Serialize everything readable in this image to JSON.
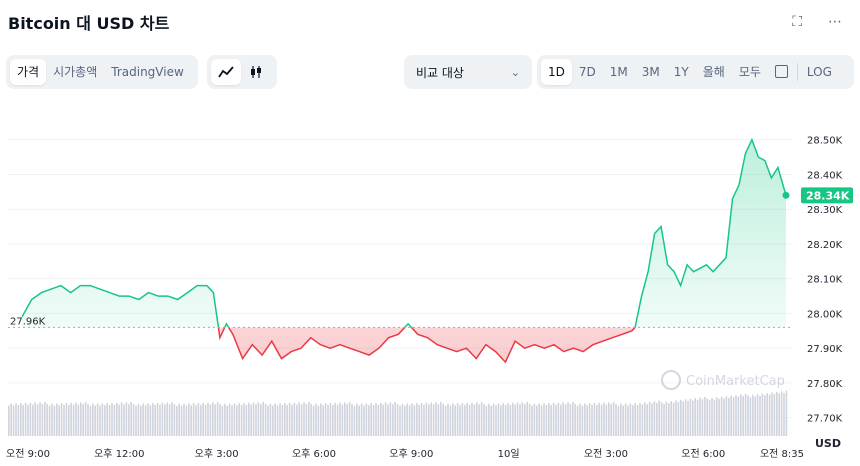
{
  "title": "Bitcoin 대 USD 차트",
  "icons": {
    "fullscreen": "expand-icon",
    "more": "more-icon"
  },
  "toolbar": {
    "type_tabs": [
      "가격",
      "시가총액",
      "TradingView"
    ],
    "active_type": 0,
    "chart_style_icons": [
      "line-chart-icon",
      "candlestick-icon"
    ],
    "compare_label": "비교 대상",
    "ranges": [
      "1D",
      "7D",
      "1M",
      "3M",
      "1Y",
      "올해",
      "모두"
    ],
    "active_range": 0,
    "log_label": "LOG"
  },
  "watermark": "CoinMarketCap",
  "currency_label": "USD",
  "colors": {
    "up": "#16c784",
    "down": "#ea3943",
    "badge": "#16c784",
    "volume": "#cfd3dc"
  },
  "chart_data": {
    "type": "line",
    "title": "Bitcoin 대 USD 차트",
    "ylabel": "USD",
    "ylim": [
      27.65,
      28.6
    ],
    "y_ticks": [
      27.7,
      27.8,
      27.9,
      28.0,
      28.1,
      28.2,
      28.3,
      28.4,
      28.5
    ],
    "y_tick_labels": [
      "27.70K",
      "27.80K",
      "27.90K",
      "28.00K",
      "28.10K",
      "28.20K",
      "28.30K",
      "28.40K",
      "28.50K"
    ],
    "x_ticks": [
      0,
      3,
      6,
      9,
      12,
      15,
      18,
      21,
      23.55
    ],
    "x_tick_labels": [
      "오전 9:00",
      "오후 12:00",
      "오후 3:00",
      "오후 6:00",
      "오후 9:00",
      "10일",
      "오전 3:00",
      "오전 6:00",
      "오전 8:35"
    ],
    "baseline": 27.96,
    "baseline_label": "27.96K",
    "current_value": 28.34,
    "current_label": "28.34K",
    "series": [
      {
        "x": [
          0,
          0.3,
          0.6,
          0.9,
          1.2,
          1.5,
          1.8,
          2.1,
          2.4,
          2.7,
          3.0,
          3.3,
          3.6,
          3.9,
          4.2,
          4.5,
          4.8,
          5.1,
          5.4,
          5.7,
          5.9,
          6.1,
          6.3,
          6.5,
          6.8,
          7.1,
          7.4,
          7.7,
          8.0,
          8.3,
          8.6,
          8.9,
          9.2,
          9.5,
          9.8,
          10.1,
          10.4,
          10.7,
          11.0,
          11.3,
          11.6,
          11.9,
          12.2,
          12.5,
          12.8,
          13.1,
          13.4,
          13.7,
          14.0,
          14.3,
          14.6,
          14.9,
          15.2,
          15.5,
          15.8,
          16.1,
          16.4,
          16.7,
          17.0,
          17.3,
          17.6,
          17.9,
          18.2,
          18.5,
          18.8,
          18.9,
          19.1,
          19.3,
          19.5,
          19.7,
          19.9,
          20.1,
          20.3,
          20.5,
          20.7,
          20.9,
          21.1,
          21.3,
          21.5,
          21.7,
          21.9,
          22.1,
          22.3,
          22.5,
          22.7,
          22.9,
          23.1,
          23.3,
          23.55
        ],
        "y": [
          27.99,
          28.04,
          28.06,
          28.07,
          28.08,
          28.06,
          28.08,
          28.08,
          28.07,
          28.06,
          28.05,
          28.05,
          28.04,
          28.06,
          28.05,
          28.05,
          28.04,
          28.06,
          28.08,
          28.08,
          28.06,
          27.93,
          27.97,
          27.94,
          27.87,
          27.91,
          27.88,
          27.92,
          27.87,
          27.89,
          27.9,
          27.93,
          27.91,
          27.9,
          27.91,
          27.9,
          27.89,
          27.88,
          27.9,
          27.93,
          27.94,
          27.97,
          27.94,
          27.93,
          27.91,
          27.9,
          27.89,
          27.9,
          27.87,
          27.91,
          27.89,
          27.86,
          27.92,
          27.9,
          27.91,
          27.9,
          27.91,
          27.89,
          27.9,
          27.89,
          27.91,
          27.92,
          27.93,
          27.94,
          27.95,
          27.96,
          28.05,
          28.12,
          28.23,
          28.25,
          28.14,
          28.12,
          28.08,
          28.14,
          28.12,
          28.13,
          28.14,
          28.12,
          28.14,
          28.16,
          28.33,
          28.37,
          28.46,
          28.5,
          28.45,
          28.44,
          28.39,
          28.42,
          28.34
        ]
      }
    ]
  }
}
